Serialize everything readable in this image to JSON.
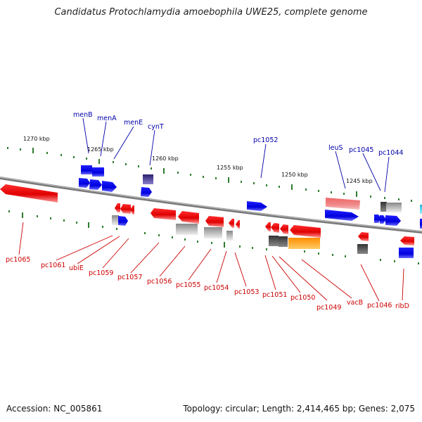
{
  "title": "Candidatus Protochlamydia amoebophila UWE25, complete genome",
  "accession": "Accession: NC_005861",
  "summary": "Topology: circular; Length: 2,414,465 bp; Genes: 2,075",
  "scale_labels": [
    "1270 kbp",
    "1265 kbp",
    "1260 kbp",
    "1255 kbp",
    "1250 kbp",
    "1245 kbp"
  ],
  "colors": {
    "backbone": "#888888",
    "tick": "#2e7d2e",
    "forward_gene": "#0000ee",
    "reverse_gene": "#ee0000",
    "label_forward": "#0000aa",
    "label_reverse": "#cc0000",
    "rna": "#4a3d8f",
    "grey": "#aaaaaa",
    "pink": "#e87878",
    "orange": "#ff9900",
    "cyan": "#33cccc",
    "dark": "#555555"
  },
  "forward_labels": [
    "menB",
    "menA",
    "menE",
    "cynT",
    "pc1052",
    "leuS",
    "pc1045",
    "pc1044"
  ],
  "reverse_labels": [
    "pc1065",
    "pc1061",
    "ubiE",
    "pc1059",
    "pc1057",
    "pc1056",
    "pc1055",
    "pc1054",
    "pc1053",
    "pc1051",
    "pc1050",
    "pc1049",
    "vacB",
    "pc1046",
    "ribD"
  ]
}
